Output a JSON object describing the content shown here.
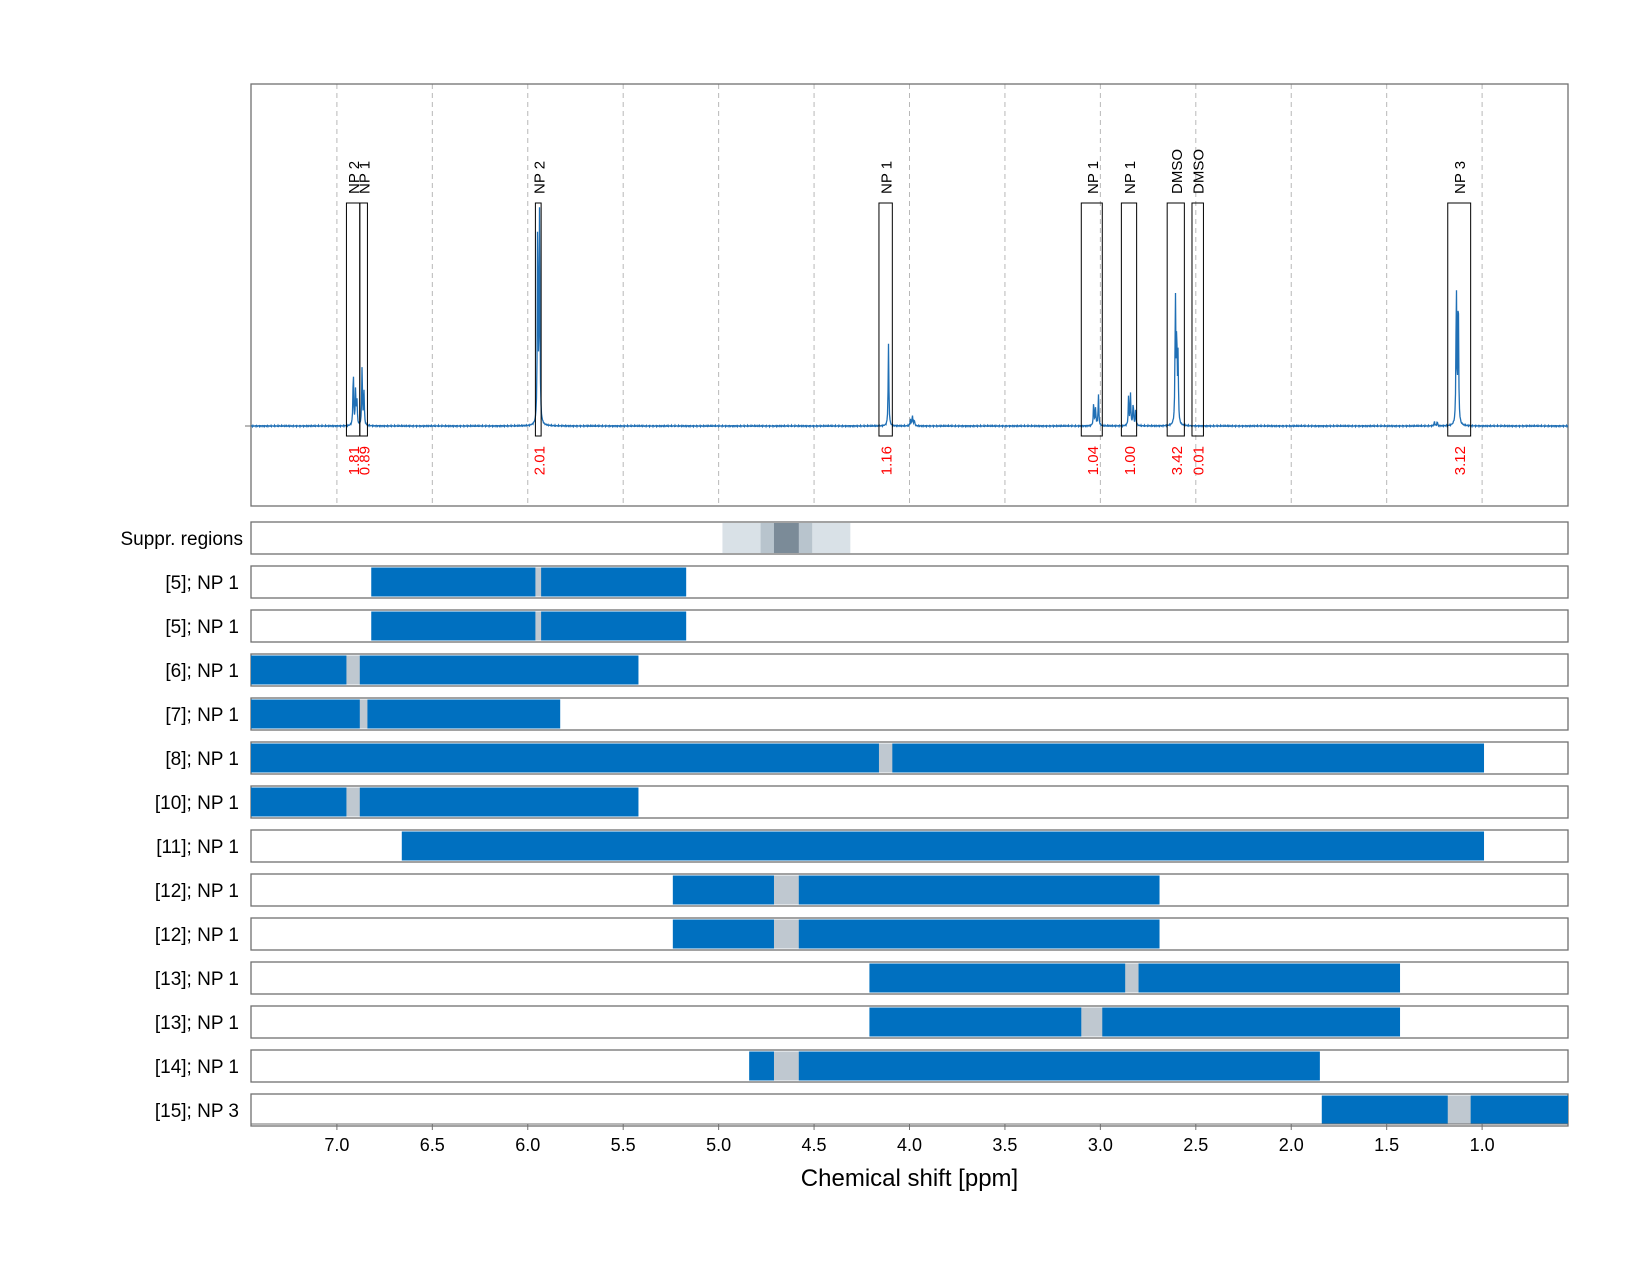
{
  "chart_data": {
    "type": "nmr-spectrum-with-region-bars",
    "xlabel": "Chemical shift [ppm]",
    "xlim": [
      7.45,
      0.55
    ],
    "x_ticks": [
      7.0,
      6.5,
      6.0,
      5.5,
      5.0,
      4.5,
      4.0,
      3.5,
      3.0,
      2.5,
      2.0,
      1.5,
      1.0
    ],
    "x_tick_labels": [
      "7.0",
      "6.5",
      "6.0",
      "5.5",
      "5.0",
      "4.5",
      "4.0",
      "3.5",
      "3.0",
      "2.5",
      "2.0",
      "1.5",
      "1.0"
    ],
    "colors": {
      "spectrum": "#1f6fb5",
      "bar": "#0070c0",
      "gap": "#bfc8d0",
      "integral": "#ff0000",
      "frame": "#707070",
      "grid": "#b8b8b8"
    },
    "peaks": [
      {
        "ppm": 6.914,
        "height": 0.26
      },
      {
        "ppm": 6.902,
        "height": 0.16
      },
      {
        "ppm": 6.895,
        "height": 0.11
      },
      {
        "ppm": 6.868,
        "height": 0.27
      },
      {
        "ppm": 6.858,
        "height": 0.15
      },
      {
        "ppm": 5.948,
        "height": 1.0
      },
      {
        "ppm": 5.938,
        "height": 0.98
      },
      {
        "ppm": 4.11,
        "height": 0.37
      },
      {
        "ppm": 3.995,
        "height": 0.03
      },
      {
        "ppm": 3.985,
        "height": 0.05
      },
      {
        "ppm": 3.975,
        "height": 0.03
      },
      {
        "ppm": 3.035,
        "height": 0.11
      },
      {
        "ppm": 3.025,
        "height": 0.08
      },
      {
        "ppm": 3.01,
        "height": 0.14
      },
      {
        "ppm": 2.852,
        "height": 0.14
      },
      {
        "ppm": 2.842,
        "height": 0.14
      },
      {
        "ppm": 2.828,
        "height": 0.11
      },
      {
        "ppm": 2.815,
        "height": 0.08
      },
      {
        "ppm": 2.607,
        "height": 0.59
      },
      {
        "ppm": 2.6,
        "height": 0.42
      },
      {
        "ppm": 2.593,
        "height": 0.3
      },
      {
        "ppm": 1.25,
        "height": 0.02
      },
      {
        "ppm": 1.235,
        "height": 0.02
      },
      {
        "ppm": 1.135,
        "height": 0.66
      },
      {
        "ppm": 1.125,
        "height": 0.65
      }
    ],
    "annotations": [
      {
        "label": "NP 2",
        "integral": "1.81",
        "from": 6.95,
        "to": 6.88
      },
      {
        "label": "NP 1",
        "integral": "0.89",
        "from": 6.88,
        "to": 6.84
      },
      {
        "label": "NP 2",
        "integral": "2.01",
        "from": 5.96,
        "to": 5.93
      },
      {
        "label": "NP 1",
        "integral": "1.16",
        "from": 4.16,
        "to": 4.09
      },
      {
        "label": "NP 1",
        "integral": "1.04",
        "from": 3.1,
        "to": 2.99
      },
      {
        "label": "NP 1",
        "integral": "1.00",
        "from": 2.89,
        "to": 2.81
      },
      {
        "label": "DMSO",
        "integral": "3.42",
        "from": 2.65,
        "to": 2.56
      },
      {
        "label": "DMSO",
        "integral": "0.01",
        "from": 2.52,
        "to": 2.46
      },
      {
        "label": "NP 3",
        "integral": "3.12",
        "from": 1.18,
        "to": 1.06
      }
    ],
    "suppression_label": "Suppr. regions",
    "suppression": [
      {
        "from": 4.98,
        "to": 4.31,
        "level": 1
      },
      {
        "from": 4.78,
        "to": 4.51,
        "level": 2
      },
      {
        "from": 4.71,
        "to": 4.58,
        "level": 3
      }
    ],
    "rows": [
      {
        "label": "[5]; NP 1",
        "from": 6.82,
        "to": 5.17,
        "gap_from": 5.96,
        "gap_to": 5.93
      },
      {
        "label": "[5]; NP 1",
        "from": 6.82,
        "to": 5.17,
        "gap_from": 5.96,
        "gap_to": 5.93
      },
      {
        "label": "[6]; NP 1",
        "from": 7.45,
        "to": 5.42,
        "gap_from": 6.95,
        "gap_to": 6.88
      },
      {
        "label": "[7]; NP 1",
        "from": 7.45,
        "to": 5.83,
        "gap_from": 6.88,
        "gap_to": 6.84
      },
      {
        "label": "[8]; NP 1",
        "from": 7.45,
        "to": 0.99,
        "gap_from": 4.16,
        "gap_to": 4.09
      },
      {
        "label": "[10]; NP 1",
        "from": 7.45,
        "to": 5.42,
        "gap_from": 6.95,
        "gap_to": 6.88
      },
      {
        "label": "[11]; NP 1",
        "from": 6.66,
        "to": 0.99,
        "gap_from": null,
        "gap_to": null
      },
      {
        "label": "[12]; NP 1",
        "from": 5.24,
        "to": 2.69,
        "gap_from": 4.71,
        "gap_to": 4.58
      },
      {
        "label": "[12]; NP 1",
        "from": 5.24,
        "to": 2.69,
        "gap_from": 4.71,
        "gap_to": 4.58
      },
      {
        "label": "[13]; NP 1",
        "from": 4.21,
        "to": 1.43,
        "gap_from": 2.87,
        "gap_to": 2.8
      },
      {
        "label": "[13]; NP 1",
        "from": 4.21,
        "to": 1.43,
        "gap_from": 3.1,
        "gap_to": 2.99
      },
      {
        "label": "[14]; NP 1",
        "from": 4.84,
        "to": 1.85,
        "gap_from": 4.71,
        "gap_to": 4.58
      },
      {
        "label": "[15]; NP 3",
        "from": 1.84,
        "to": 0.55,
        "gap_from": 1.18,
        "gap_to": 1.06
      }
    ]
  }
}
